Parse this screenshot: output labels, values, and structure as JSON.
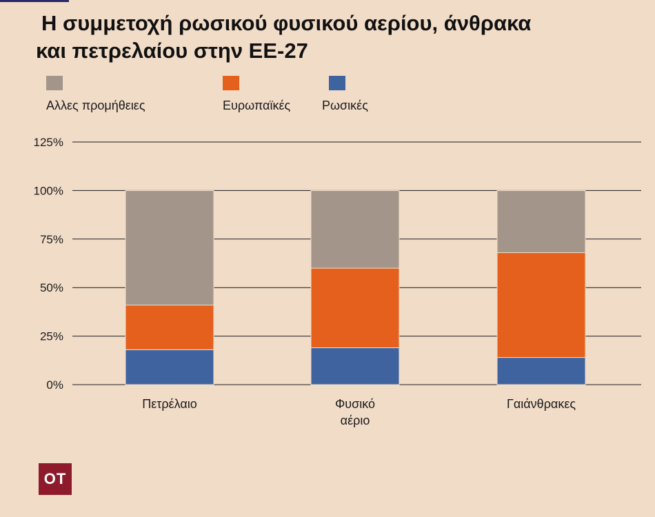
{
  "title_line1": "Η συμμετοχή ρωσικού φυσικού αερίου, άνθρακα",
  "title_line2": "και πετρελαίου στην ΕΕ-27",
  "logo_text": "ΟΤ",
  "colors": {
    "background": "#f1dcc8",
    "other": "#a39589",
    "european": "#e5601c",
    "russian": "#3e639f"
  },
  "chart_data": {
    "type": "bar",
    "stacked": true,
    "title": "Η συμμετοχή ρωσικού φυσικού αερίου, άνθρακα και πετρελαίου στην ΕΕ-27",
    "categories": [
      [
        "Πετρέλαιο"
      ],
      [
        "Φυσικό",
        "αέριο"
      ],
      [
        "Γαιάνθρακες"
      ]
    ],
    "series": [
      {
        "name": "Ρωσικές",
        "color": "#3e639f",
        "values": [
          18,
          19,
          14
        ]
      },
      {
        "name": "Ευρωπαϊκές",
        "color": "#e5601c",
        "values": [
          23,
          41,
          54
        ]
      },
      {
        "name": "Αλλες προμήθειες",
        "color": "#a39589",
        "values": [
          59,
          40,
          32
        ]
      }
    ],
    "legend_order": [
      "Αλλες προμήθειες",
      "Ευρωπαϊκές",
      "Ρωσικές"
    ],
    "ylim": [
      0,
      125
    ],
    "yticks": [
      0,
      25,
      50,
      75,
      100,
      125
    ],
    "ytick_labels": [
      "0%",
      "25%",
      "50%",
      "75%",
      "100%",
      "125%"
    ],
    "grid": true,
    "legend_position": "top-left"
  }
}
